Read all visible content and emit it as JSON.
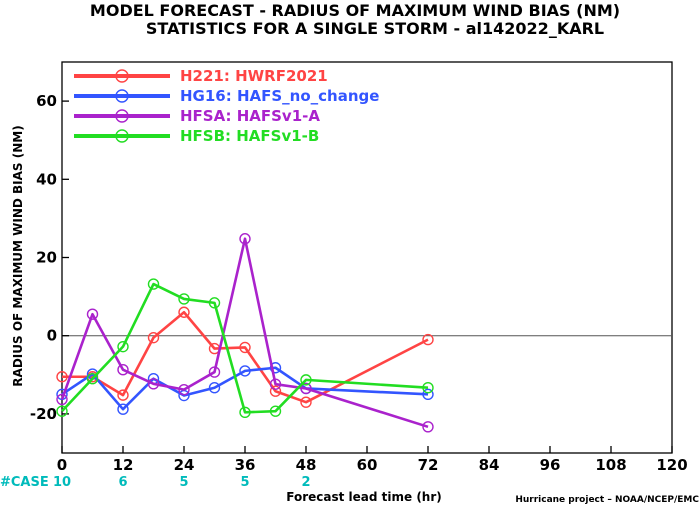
{
  "chart_data": {
    "type": "line",
    "title_line1": "MODEL FORECAST - RADIUS OF MAXIMUM WIND BIAS (NM)",
    "title_line2": "STATISTICS FOR A SINGLE STORM - al142022_KARL",
    "ylabel": "RADIUS OF MAXIMUM WIND BIAS (NM)",
    "xlabel": "Forecast lead time (hr)",
    "xlim": [
      0,
      120
    ],
    "ylim": [
      -30,
      70
    ],
    "x_ticks": [
      0,
      12,
      24,
      36,
      48,
      60,
      72,
      84,
      96,
      108,
      120
    ],
    "x_tick_labels": [
      "0",
      "12",
      "24",
      "36",
      "48",
      "60",
      "72",
      "84",
      "96",
      "108",
      "120"
    ],
    "y_ticks": [
      -20,
      0,
      20,
      40,
      60
    ],
    "y_tick_labels": [
      "-20",
      "0",
      "20",
      "40",
      "60"
    ],
    "zero_line": true,
    "grid": false,
    "legend_placement": "top-left",
    "series": [
      {
        "name": "H221: HWRF2021",
        "color": "#ff4444",
        "x": [
          0,
          6,
          12,
          18,
          24,
          30,
          36,
          42,
          48,
          72
        ],
        "y": [
          -10.5,
          -10.5,
          -15.2,
          -0.5,
          6.0,
          -3.3,
          -3.0,
          -14.2,
          -17.0,
          -1.0
        ]
      },
      {
        "name": "HG16: HAFS_no_change",
        "color": "#3355ff",
        "x": [
          0,
          6,
          12,
          18,
          24,
          30,
          36,
          42,
          48,
          72
        ],
        "y": [
          -15.0,
          -9.8,
          -18.8,
          -11.0,
          -15.3,
          -13.3,
          -9.0,
          -8.2,
          -13.5,
          -15.0
        ]
      },
      {
        "name": "HFSA: HAFSv1-A",
        "color": "#aa22cc",
        "x": [
          0,
          6,
          12,
          18,
          24,
          30,
          36,
          42,
          48,
          72
        ],
        "y": [
          -16.3,
          5.5,
          -8.7,
          -12.3,
          -13.8,
          -9.3,
          24.8,
          -12.4,
          -13.5,
          -23.3
        ]
      },
      {
        "name": "HFSB: HAFSv1-B",
        "color": "#22dd22",
        "x": [
          0,
          6,
          12,
          18,
          24,
          30,
          36,
          42,
          48,
          72
        ],
        "y": [
          -19.3,
          -11.0,
          -2.8,
          13.2,
          9.4,
          8.4,
          -19.6,
          -19.3,
          -11.3,
          -13.3
        ]
      }
    ],
    "case_label": "#CASE",
    "case_label_color": "#00bbbb",
    "case_counts": [
      {
        "x": 0,
        "label": "10"
      },
      {
        "x": 12,
        "label": "6"
      },
      {
        "x": 24,
        "label": "5"
      },
      {
        "x": 36,
        "label": "5"
      },
      {
        "x": 48,
        "label": "2"
      }
    ],
    "credit": "Hurricane project – NOAA/NCEP/EMC"
  }
}
